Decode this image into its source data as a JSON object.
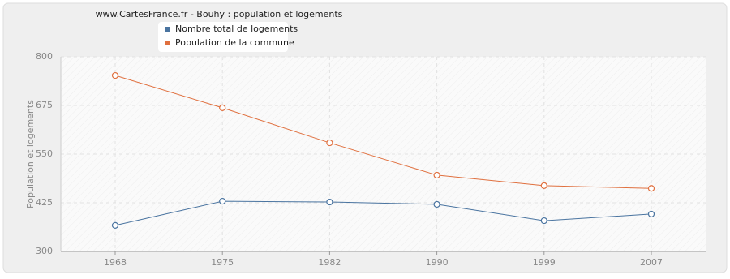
{
  "chart_data": {
    "type": "line",
    "title": "www.CartesFrance.fr - Bouhy : population et logements",
    "y_label": "Population et logements",
    "categories": [
      "1968",
      "1975",
      "1982",
      "1990",
      "1999",
      "2007"
    ],
    "series": [
      {
        "name": "Nombre total de logements",
        "color": "#4a74a0",
        "values": [
          367,
          429,
          427,
          421,
          379,
          396
        ]
      },
      {
        "name": "Population de la commune",
        "color": "#e0703f",
        "values": [
          752,
          669,
          579,
          496,
          469,
          462
        ]
      }
    ],
    "ylim": [
      300,
      800
    ],
    "yticks": [
      300,
      425,
      550,
      675,
      800
    ],
    "grid": true
  }
}
